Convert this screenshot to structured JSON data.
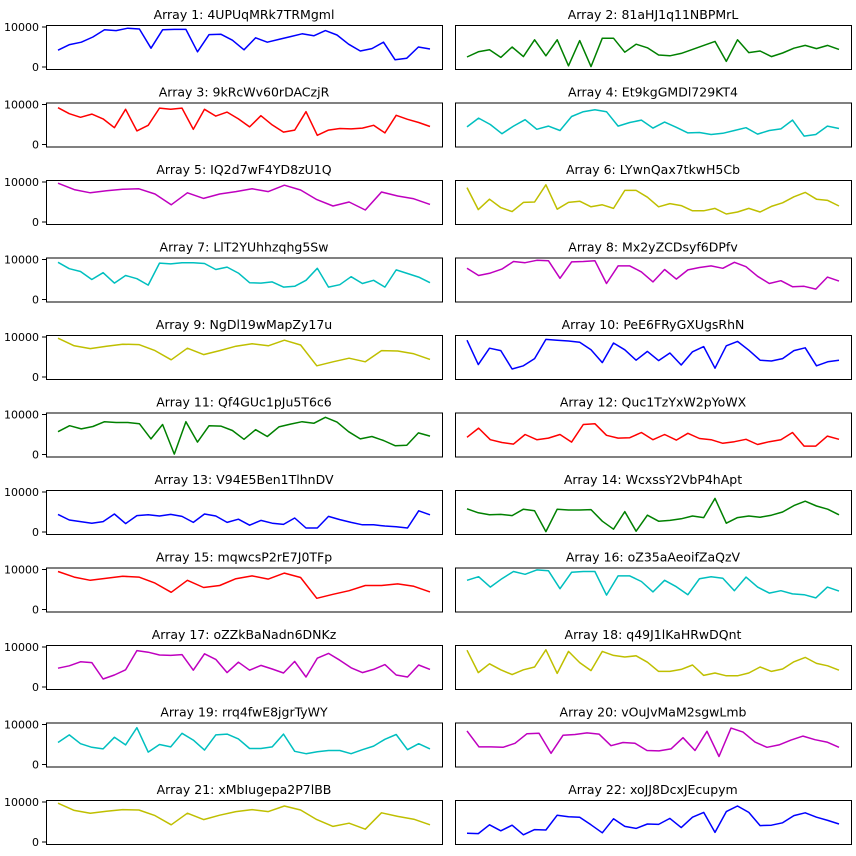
{
  "chart_data": [
    {
      "type": "line",
      "title": "Array 1: 4UPUqMRk7TRMgml",
      "color": "#0000ff",
      "ylim": [
        0,
        10000
      ],
      "yticks": [
        0,
        10000
      ],
      "y": [
        4200,
        5600,
        6200,
        7500,
        9300,
        9100,
        9700,
        9500,
        4700,
        9300,
        9400,
        9400,
        3800,
        8100,
        8200,
        6700,
        4300,
        7300,
        6200,
        6900,
        7600,
        8300,
        7800,
        9100,
        8000,
        5700,
        4000,
        4600,
        6200,
        1800,
        2200,
        5000,
        4500
      ]
    },
    {
      "type": "line",
      "title": "Array 2: 81aHJ1q11NBPMrL",
      "color": "#008000",
      "ylim": [
        0,
        10000
      ],
      "yticks": [
        0,
        10000
      ],
      "y": [
        2500,
        3800,
        4300,
        2400,
        5000,
        2600,
        6800,
        2800,
        6800,
        300,
        6600,
        100,
        7200,
        7200,
        3700,
        5700,
        4800,
        3000,
        2800,
        3400,
        4400,
        5400,
        6400,
        1400,
        6800,
        3600,
        4000,
        2600,
        3500,
        4700,
        5400,
        4600,
        5400,
        4400
      ]
    },
    {
      "type": "line",
      "title": "Array 3: 9kRcWv60rDACzjR",
      "color": "#ff0000",
      "ylim": [
        0,
        10000
      ],
      "yticks": [
        0,
        10000
      ],
      "y": [
        9200,
        7700,
        6800,
        7600,
        6400,
        4200,
        8800,
        3400,
        4800,
        9100,
        8800,
        9100,
        3800,
        8800,
        7100,
        8100,
        6400,
        4400,
        7200,
        4900,
        3100,
        3600,
        8200,
        2300,
        3600,
        4000,
        3900,
        4100,
        4800,
        2900,
        7300,
        6300,
        5500,
        4500
      ]
    },
    {
      "type": "line",
      "title": "Array 4: Et9kgGMDl729KT4",
      "color": "#00bfbf",
      "ylim": [
        0,
        10000
      ],
      "yticks": [
        0,
        10000
      ],
      "y": [
        4400,
        6600,
        5000,
        2700,
        4600,
        6200,
        3800,
        4600,
        3500,
        7000,
        8200,
        8700,
        8200,
        4600,
        5500,
        6100,
        4100,
        5600,
        4300,
        2900,
        3000,
        2500,
        2800,
        3500,
        4200,
        2600,
        3500,
        3900,
        6100,
        2100,
        2500,
        4600,
        4000
      ]
    },
    {
      "type": "line",
      "title": "Array 5: IQ2d7wF4YD8zU1Q",
      "color": "#bf00bf",
      "ylim": [
        0,
        10000
      ],
      "yticks": [
        0,
        10000
      ],
      "y": [
        9700,
        8100,
        7300,
        7800,
        8200,
        8300,
        7000,
        4300,
        7300,
        5900,
        7000,
        7600,
        8300,
        7600,
        9200,
        8000,
        5600,
        4000,
        5000,
        3000,
        7500,
        6500,
        5800,
        4400
      ]
    },
    {
      "type": "line",
      "title": "Array 6: LYwnQax7tkwH5Cb",
      "color": "#bfbf00",
      "ylim": [
        0,
        10000
      ],
      "yticks": [
        0,
        10000
      ],
      "y": [
        8600,
        3100,
        5700,
        3600,
        2600,
        4900,
        5000,
        9300,
        3200,
        4900,
        5200,
        3800,
        4300,
        3400,
        7900,
        7900,
        6200,
        3800,
        4600,
        4100,
        2800,
        2800,
        3400,
        2000,
        2500,
        3400,
        2500,
        3900,
        4800,
        6300,
        7400,
        5700,
        5400,
        4000
      ]
    },
    {
      "type": "line",
      "title": "Array 7: LlT2YUhhzqhg5Sw",
      "color": "#00bfbf",
      "ylim": [
        0,
        10000
      ],
      "yticks": [
        0,
        10000
      ],
      "y": [
        9300,
        7700,
        7000,
        5000,
        6700,
        4100,
        6000,
        5200,
        3600,
        9100,
        8900,
        9200,
        9200,
        9000,
        7500,
        8100,
        6600,
        4200,
        4100,
        4400,
        3100,
        3300,
        4800,
        7800,
        3100,
        3700,
        5700,
        4000,
        4800,
        3100,
        7400,
        6500,
        5600,
        4200
      ]
    },
    {
      "type": "line",
      "title": "Array 8: Mx2yZCDsyf6DPfv",
      "color": "#bf00bf",
      "ylim": [
        0,
        10000
      ],
      "yticks": [
        0,
        10000
      ],
      "y": [
        7800,
        6000,
        6600,
        7600,
        9500,
        9200,
        9800,
        9700,
        5300,
        9400,
        9500,
        9700,
        4000,
        8400,
        8400,
        6900,
        4400,
        7500,
        5100,
        7400,
        8000,
        8400,
        7800,
        9300,
        8200,
        5800,
        4000,
        4700,
        3200,
        3300,
        2600,
        5600,
        4600
      ]
    },
    {
      "type": "line",
      "title": "Array 9: NgDl19wMapZy17u",
      "color": "#bfbf00",
      "ylim": [
        0,
        10000
      ],
      "yticks": [
        0,
        10000
      ],
      "y": [
        9700,
        7800,
        7100,
        7700,
        8200,
        8100,
        6600,
        4300,
        7200,
        5600,
        6600,
        7700,
        8300,
        7800,
        9200,
        8000,
        2800,
        3800,
        4700,
        3800,
        6600,
        6500,
        5800,
        4400
      ]
    },
    {
      "type": "line",
      "title": "Array 10: PeE6FRyGXUgsRhN",
      "color": "#0000ff",
      "ylim": [
        0,
        10000
      ],
      "yticks": [
        0,
        10000
      ],
      "y": [
        9200,
        3100,
        7200,
        6600,
        2000,
        2800,
        4600,
        9400,
        9200,
        9000,
        8700,
        6800,
        3600,
        8500,
        6800,
        4200,
        6400,
        4100,
        6000,
        3000,
        6300,
        7600,
        2200,
        7800,
        8900,
        6700,
        4200,
        4000,
        4600,
        6600,
        7300,
        2800,
        3800,
        4200
      ]
    },
    {
      "type": "line",
      "title": "Array 11: Qf4GUc1pJu5T6c6",
      "color": "#008000",
      "ylim": [
        0,
        10000
      ],
      "yticks": [
        0,
        10000
      ],
      "y": [
        5700,
        7200,
        6400,
        7000,
        8200,
        8000,
        8000,
        7700,
        3900,
        7500,
        100,
        8200,
        3100,
        7200,
        7100,
        6000,
        3800,
        6200,
        4500,
        6900,
        7600,
        8200,
        7800,
        9300,
        8100,
        5700,
        3900,
        4500,
        3500,
        2200,
        2300,
        5400,
        4600
      ]
    },
    {
      "type": "line",
      "title": "Array 12: Quc1TzYxW2pYoWX",
      "color": "#ff0000",
      "ylim": [
        0,
        10000
      ],
      "yticks": [
        0,
        10000
      ],
      "y": [
        4300,
        6600,
        3700,
        3000,
        2600,
        5000,
        3700,
        4100,
        5000,
        3100,
        7500,
        7700,
        4800,
        4100,
        4200,
        5500,
        3700,
        5000,
        3600,
        5300,
        4000,
        3700,
        2800,
        3200,
        3800,
        2500,
        3200,
        3700,
        5500,
        2100,
        2100,
        4600,
        3800
      ]
    },
    {
      "type": "line",
      "title": "Array 13: V94E5Ben1TlhnDV",
      "color": "#0000ff",
      "ylim": [
        0,
        10000
      ],
      "yticks": [
        0,
        10000
      ],
      "y": [
        4400,
        3000,
        2600,
        2200,
        2600,
        4500,
        2100,
        4100,
        4300,
        4000,
        4400,
        3900,
        2400,
        4500,
        4000,
        2400,
        3200,
        1700,
        2900,
        2200,
        1900,
        3500,
        1000,
        1000,
        3900,
        3100,
        2400,
        1800,
        1800,
        1500,
        1300,
        1000,
        5300,
        4300
      ]
    },
    {
      "type": "line",
      "title": "Array 14: WcxssY2VbP4hApt",
      "color": "#008000",
      "ylim": [
        0,
        10000
      ],
      "yticks": [
        0,
        10000
      ],
      "y": [
        5800,
        4800,
        4300,
        4400,
        4100,
        5700,
        5300,
        100,
        5700,
        5500,
        5500,
        5600,
        2700,
        700,
        5100,
        200,
        4200,
        2700,
        2900,
        3300,
        4000,
        3600,
        8400,
        2200,
        3600,
        4000,
        3700,
        4200,
        5000,
        6600,
        7700,
        6500,
        5700,
        4300
      ]
    },
    {
      "type": "line",
      "title": "Array 15: mqwcsP2rE7J0TFp",
      "color": "#ff0000",
      "ylim": [
        0,
        10000
      ],
      "yticks": [
        0,
        10000
      ],
      "y": [
        9500,
        8100,
        7300,
        7800,
        8300,
        8100,
        6600,
        4300,
        7300,
        5500,
        6000,
        7700,
        8400,
        7600,
        9100,
        8000,
        2800,
        3800,
        4700,
        6000,
        6000,
        6400,
        5800,
        4400
      ]
    },
    {
      "type": "line",
      "title": "Array 16: oZ35aAeoifZaQzV",
      "color": "#00bfbf",
      "ylim": [
        0,
        10000
      ],
      "yticks": [
        0,
        10000
      ],
      "y": [
        7300,
        8200,
        5600,
        7700,
        9500,
        8800,
        9900,
        9700,
        5200,
        9300,
        9500,
        9500,
        3600,
        8400,
        8400,
        7000,
        4400,
        7300,
        5700,
        3700,
        7700,
        8200,
        7800,
        4700,
        8100,
        5600,
        4100,
        4700,
        3900,
        3700,
        2900,
        5600,
        4600
      ]
    },
    {
      "type": "line",
      "title": "Array 17: oZZkBaNadn6DNKz",
      "color": "#bf00bf",
      "ylim": [
        0,
        10000
      ],
      "yticks": [
        0,
        10000
      ],
      "y": [
        4700,
        5300,
        6300,
        6100,
        2000,
        3000,
        4300,
        9100,
        8700,
        8000,
        7900,
        8100,
        4200,
        8300,
        6900,
        3600,
        6200,
        4200,
        5400,
        4500,
        3500,
        6400,
        2500,
        7200,
        8400,
        6700,
        4800,
        3600,
        4400,
        5600,
        3000,
        2500,
        5500,
        4400
      ]
    },
    {
      "type": "line",
      "title": "Array 18: q49J1lKaHRwDQnt",
      "color": "#bfbf00",
      "ylim": [
        0,
        10000
      ],
      "yticks": [
        0,
        10000
      ],
      "y": [
        9200,
        3600,
        5800,
        4300,
        3100,
        4300,
        5000,
        9300,
        3400,
        8900,
        6100,
        4100,
        8900,
        7900,
        7500,
        7800,
        6200,
        3900,
        3900,
        4400,
        5500,
        2900,
        3500,
        2800,
        2800,
        3500,
        5000,
        3900,
        4500,
        6300,
        7400,
        5900,
        5300,
        4200
      ]
    },
    {
      "type": "line",
      "title": "Array 19: rrq4fwE8jgrTyWY",
      "color": "#00bfbf",
      "ylim": [
        0,
        10000
      ],
      "yticks": [
        0,
        10000
      ],
      "y": [
        5500,
        7400,
        5200,
        4300,
        3900,
        6800,
        4900,
        9200,
        3100,
        5000,
        4400,
        7800,
        6100,
        3600,
        7400,
        7600,
        6400,
        4000,
        4000,
        4400,
        7600,
        3300,
        2700,
        3200,
        3500,
        3500,
        2700,
        3700,
        4600,
        6300,
        7500,
        3700,
        5200,
        3900
      ]
    },
    {
      "type": "line",
      "title": "Array 20: vOuJvMaM2sgwLmb",
      "color": "#bf00bf",
      "ylim": [
        0,
        10000
      ],
      "yticks": [
        0,
        10000
      ],
      "y": [
        8400,
        4400,
        4400,
        4300,
        5300,
        7700,
        7800,
        2800,
        7300,
        7500,
        7900,
        7600,
        4700,
        5500,
        5300,
        3500,
        3400,
        3900,
        6700,
        3500,
        8300,
        2000,
        9100,
        8100,
        5600,
        4300,
        4900,
        6100,
        7100,
        6200,
        5600,
        4300
      ]
    },
    {
      "type": "line",
      "title": "Array 21: xMbIugepa2P7lBB",
      "color": "#bfbf00",
      "ylim": [
        0,
        10000
      ],
      "yticks": [
        0,
        10000
      ],
      "y": [
        9700,
        7900,
        7200,
        7700,
        8100,
        8000,
        6600,
        4300,
        7200,
        5600,
        6700,
        7600,
        8100,
        7600,
        9000,
        8000,
        5600,
        3900,
        4700,
        3200,
        7300,
        6400,
        5700,
        4300
      ]
    },
    {
      "type": "line",
      "title": "Array 22: xoJJ8DcxJEcupym",
      "color": "#0000ff",
      "ylim": [
        0,
        10000
      ],
      "yticks": [
        0,
        10000
      ],
      "y": [
        2200,
        2100,
        4300,
        2800,
        4200,
        1800,
        3100,
        3000,
        6700,
        6300,
        6200,
        4300,
        2300,
        5800,
        3900,
        3400,
        4500,
        4400,
        5900,
        3600,
        6200,
        7400,
        2400,
        7600,
        9000,
        7400,
        4100,
        4200,
        4800,
        6600,
        7300,
        6200,
        5400,
        4500
      ]
    }
  ]
}
